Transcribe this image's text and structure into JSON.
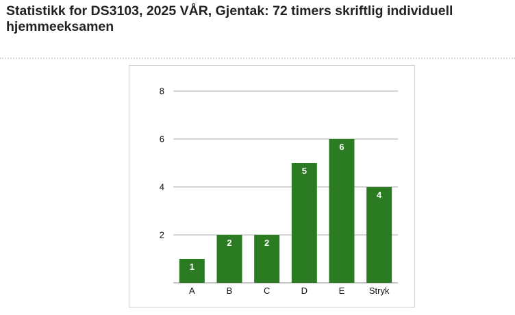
{
  "page": {
    "title": "Statistikk for DS3103, 2025 VÅR, Gjentak: 72 timers skriftlig individuell hjemmeeksamen"
  },
  "colors": {
    "bar": "#2a7b22",
    "grid": "#a8a8a8",
    "data_label": "#ffffff"
  },
  "chart_data": {
    "type": "bar",
    "title": "",
    "xlabel": "",
    "ylabel": "",
    "categories": [
      "A",
      "B",
      "C",
      "D",
      "E",
      "Stryk"
    ],
    "values": [
      1,
      2,
      2,
      5,
      6,
      4
    ],
    "ylim": [
      0,
      8
    ],
    "yticks": [
      2,
      4,
      6,
      8
    ],
    "grid": true,
    "legend": "none",
    "data_labels": true
  }
}
